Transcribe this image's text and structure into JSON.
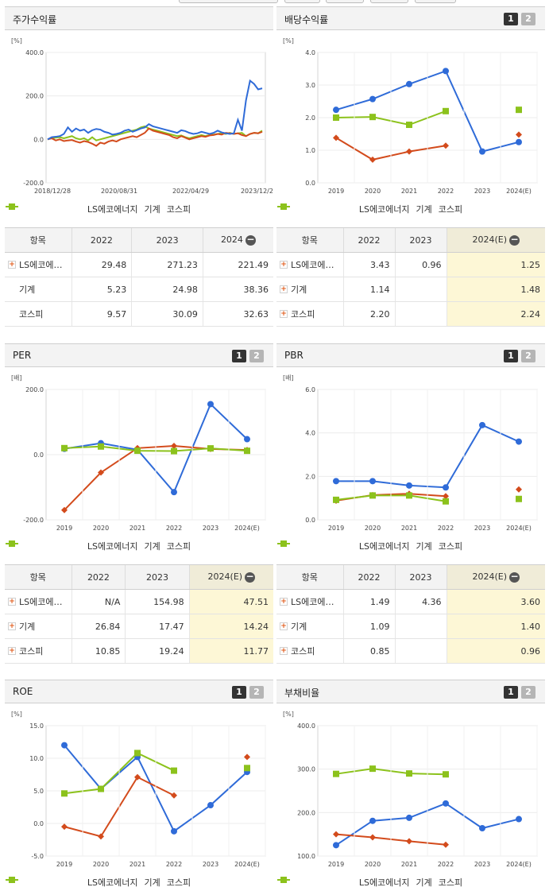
{
  "colors": {
    "ls": "#2f6bd8",
    "machinery": "#d34b1c",
    "kospi": "#8cc21c"
  },
  "legend": {
    "ls": "LS에코에너지",
    "machinery": "기계",
    "kospi": "코스피"
  },
  "buttons": {
    "b1": "1",
    "b2": "2"
  },
  "panels": {
    "stock_return": {
      "title": "주가수익률",
      "unit": "[%]",
      "table": {
        "headers": [
          "항목",
          "2022",
          "2023",
          "2024"
        ],
        "rows": [
          {
            "name": "LS에코에…",
            "v": [
              "29.48",
              "271.23",
              "221.49"
            ]
          },
          {
            "name": "기계",
            "v": [
              "5.23",
              "24.98",
              "38.36"
            ]
          },
          {
            "name": "코스피",
            "v": [
              "9.57",
              "30.09",
              "32.63"
            ]
          }
        ]
      }
    },
    "dividend": {
      "title": "배당수익률",
      "unit": "[%]",
      "table": {
        "headers": [
          "항목",
          "2022",
          "2023",
          "2024(E)"
        ],
        "rows": [
          {
            "name": "LS에코에…",
            "v": [
              "3.43",
              "0.96",
              "1.25"
            ]
          },
          {
            "name": "기계",
            "v": [
              "1.14",
              "",
              "1.48"
            ]
          },
          {
            "name": "코스피",
            "v": [
              "2.20",
              "",
              "2.24"
            ]
          }
        ]
      }
    },
    "per": {
      "title": "PER",
      "unit": "[배]",
      "table": {
        "headers": [
          "항목",
          "2022",
          "2023",
          "2024(E)"
        ],
        "rows": [
          {
            "name": "LS에코에…",
            "v": [
              "N/A",
              "154.98",
              "47.51"
            ]
          },
          {
            "name": "기계",
            "v": [
              "26.84",
              "17.47",
              "14.24"
            ]
          },
          {
            "name": "코스피",
            "v": [
              "10.85",
              "19.24",
              "11.77"
            ]
          }
        ]
      }
    },
    "pbr": {
      "title": "PBR",
      "unit": "[배]",
      "table": {
        "headers": [
          "항목",
          "2022",
          "2023",
          "2024(E)"
        ],
        "rows": [
          {
            "name": "LS에코에…",
            "v": [
              "1.49",
              "4.36",
              "3.60"
            ]
          },
          {
            "name": "기계",
            "v": [
              "1.09",
              "",
              "1.40"
            ]
          },
          {
            "name": "코스피",
            "v": [
              "0.85",
              "",
              "0.96"
            ]
          }
        ]
      }
    },
    "roe": {
      "title": "ROE",
      "unit": "[%]"
    },
    "debt": {
      "title": "부채비율",
      "unit": "[%]"
    }
  },
  "chart_data": [
    {
      "id": "stock_return",
      "type": "line",
      "xticks": [
        "2018/12/28",
        "2020/08/31",
        "2022/04/29",
        "2023/12/28"
      ],
      "yticks": [
        "400.0",
        "200.0",
        "0.0",
        "-200.0"
      ],
      "ylim": [
        -200,
        400
      ],
      "series": [
        {
          "name": "LS에코에너지",
          "values": [
            0,
            10,
            12,
            15,
            25,
            55,
            35,
            50,
            40,
            45,
            30,
            42,
            48,
            45,
            35,
            30,
            22,
            25,
            30,
            40,
            45,
            35,
            42,
            50,
            55,
            70,
            60,
            55,
            50,
            45,
            40,
            35,
            30,
            42,
            38,
            30,
            25,
            28,
            35,
            30,
            25,
            30,
            40,
            32,
            28,
            25,
            28,
            90,
            40,
            180,
            270,
            255,
            230,
            235
          ]
        },
        {
          "name": "기계",
          "values": [
            0,
            5,
            -5,
            0,
            -8,
            -5,
            -3,
            -10,
            -15,
            -8,
            -12,
            -20,
            -30,
            -15,
            -20,
            -10,
            -5,
            -10,
            0,
            5,
            10,
            15,
            10,
            20,
            30,
            50,
            40,
            35,
            30,
            25,
            20,
            10,
            5,
            15,
            8,
            0,
            5,
            10,
            15,
            12,
            18,
            20,
            25,
            22,
            30,
            28,
            25,
            28,
            20,
            15,
            25,
            30,
            28,
            35
          ]
        },
        {
          "name": "코스피",
          "values": [
            0,
            5,
            8,
            10,
            5,
            10,
            15,
            5,
            0,
            5,
            -5,
            10,
            -5,
            0,
            5,
            10,
            15,
            20,
            25,
            30,
            35,
            40,
            45,
            55,
            60,
            50,
            45,
            40,
            35,
            30,
            25,
            20,
            15,
            18,
            10,
            5,
            10,
            15,
            20,
            15,
            20,
            22,
            25,
            28,
            25,
            30,
            25,
            28,
            30,
            15,
            25,
            30,
            28,
            40
          ]
        }
      ]
    },
    {
      "id": "dividend",
      "type": "line",
      "categories": [
        "2019",
        "2020",
        "2021",
        "2022",
        "2023",
        "2024(E)"
      ],
      "yticks": [
        "4.0",
        "3.0",
        "2.0",
        "1.0",
        "0.0"
      ],
      "ylim": [
        0,
        4
      ],
      "series": [
        {
          "name": "LS에코에너지",
          "values": [
            2.24,
            2.57,
            3.03,
            3.43,
            0.96,
            1.25
          ]
        },
        {
          "name": "기계",
          "values": [
            1.38,
            0.71,
            0.96,
            1.14,
            null,
            1.48
          ]
        },
        {
          "name": "코스피",
          "values": [
            2.0,
            2.02,
            1.78,
            2.2,
            null,
            2.24
          ]
        }
      ]
    },
    {
      "id": "per",
      "type": "line",
      "categories": [
        "2019",
        "2020",
        "2021",
        "2022",
        "2023",
        "2024(E)"
      ],
      "yticks": [
        "200.0",
        "0.0",
        "-200.0"
      ],
      "ylim": [
        -200,
        200
      ],
      "series": [
        {
          "name": "LS에코에너지",
          "values": [
            18,
            35,
            15,
            -115,
            154.98,
            47.51
          ]
        },
        {
          "name": "기계",
          "values": [
            -170,
            -55,
            20,
            26.84,
            17.47,
            14.24
          ]
        },
        {
          "name": "코스피",
          "values": [
            20,
            25,
            12,
            10.85,
            19.24,
            11.77
          ]
        }
      ]
    },
    {
      "id": "pbr",
      "type": "line",
      "categories": [
        "2019",
        "2020",
        "2021",
        "2022",
        "2023",
        "2024(E)"
      ],
      "yticks": [
        "6.0",
        "4.0",
        "2.0",
        "0.0"
      ],
      "ylim": [
        0,
        6
      ],
      "series": [
        {
          "name": "LS에코에너지",
          "values": [
            1.78,
            1.78,
            1.58,
            1.49,
            4.36,
            3.6
          ]
        },
        {
          "name": "기계",
          "values": [
            0.88,
            1.14,
            1.2,
            1.09,
            null,
            1.4
          ]
        },
        {
          "name": "코스피",
          "values": [
            0.92,
            1.12,
            1.12,
            0.85,
            null,
            0.96
          ]
        }
      ]
    },
    {
      "id": "roe",
      "type": "line",
      "categories": [
        "2019",
        "2020",
        "2021",
        "2022",
        "2023",
        "2024(E)"
      ],
      "yticks": [
        "15.0",
        "10.0",
        "5.0",
        "0.0",
        "-5.0"
      ],
      "ylim": [
        -5,
        15
      ],
      "series": [
        {
          "name": "LS에코에너지",
          "values": [
            12.0,
            5.3,
            10.2,
            -1.2,
            2.8,
            7.9
          ]
        },
        {
          "name": "기계",
          "values": [
            -0.5,
            -2.0,
            7.1,
            4.3,
            null,
            10.2
          ]
        },
        {
          "name": "코스피",
          "values": [
            4.6,
            5.3,
            10.8,
            8.1,
            null,
            8.5
          ]
        }
      ]
    },
    {
      "id": "debt",
      "type": "line",
      "categories": [
        "2019",
        "2020",
        "2021",
        "2022",
        "2023",
        "2024(E)"
      ],
      "yticks": [
        "400.0",
        "300.0",
        "200.0",
        "100.0"
      ],
      "ylim": [
        100,
        400
      ],
      "series": [
        {
          "name": "LS에코에너지",
          "values": [
            125,
            181,
            188,
            221,
            164,
            185
          ]
        },
        {
          "name": "기계",
          "values": [
            150,
            143,
            134,
            126,
            null,
            null
          ]
        },
        {
          "name": "코스피",
          "values": [
            289,
            301,
            290,
            288,
            null,
            null
          ]
        }
      ]
    }
  ]
}
